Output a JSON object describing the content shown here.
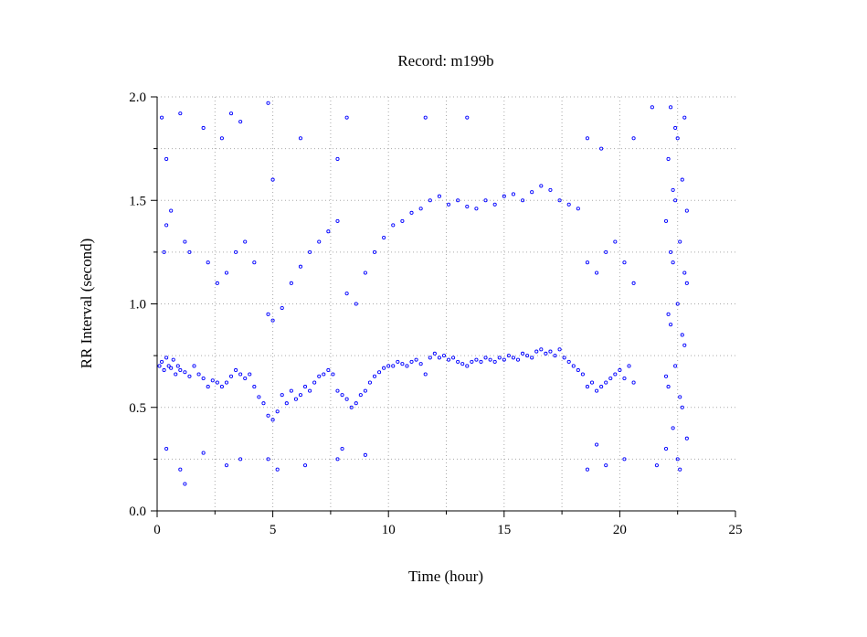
{
  "chart_data": {
    "type": "scatter",
    "title": "Record:  m199b",
    "xlabel": "Time (hour)",
    "ylabel": "RR Interval (second)",
    "xlim": [
      0,
      25
    ],
    "ylim": [
      0.0,
      2.0
    ],
    "xticks": [
      0,
      5,
      10,
      15,
      20,
      25
    ],
    "xtick_labels": [
      "0",
      "5",
      "10",
      "15",
      "20",
      "25"
    ],
    "yticks": [
      0.0,
      0.5,
      1.0,
      1.5,
      2.0
    ],
    "ytick_labels": [
      "0.0",
      "0.5",
      "1.0",
      "1.5",
      "2.0"
    ],
    "grid": true,
    "marker": "open-circle",
    "color": "#0000ff",
    "series": [
      {
        "name": "",
        "points": [
          [
            0.1,
            0.7
          ],
          [
            0.2,
            0.72
          ],
          [
            0.3,
            0.68
          ],
          [
            0.4,
            0.74
          ],
          [
            0.5,
            0.7
          ],
          [
            0.6,
            0.69
          ],
          [
            0.7,
            0.73
          ],
          [
            0.8,
            0.66
          ],
          [
            0.9,
            0.7
          ],
          [
            1.0,
            0.68
          ],
          [
            1.2,
            0.67
          ],
          [
            1.4,
            0.65
          ],
          [
            1.6,
            0.7
          ],
          [
            1.8,
            0.66
          ],
          [
            2.0,
            0.64
          ],
          [
            2.2,
            0.6
          ],
          [
            2.4,
            0.63
          ],
          [
            2.6,
            0.62
          ],
          [
            2.8,
            0.6
          ],
          [
            3.0,
            0.62
          ],
          [
            3.2,
            0.65
          ],
          [
            3.4,
            0.68
          ],
          [
            3.6,
            0.66
          ],
          [
            3.8,
            0.64
          ],
          [
            4.0,
            0.66
          ],
          [
            4.2,
            0.6
          ],
          [
            4.4,
            0.55
          ],
          [
            4.6,
            0.52
          ],
          [
            4.8,
            0.46
          ],
          [
            5.0,
            0.44
          ],
          [
            5.2,
            0.48
          ],
          [
            5.4,
            0.56
          ],
          [
            5.6,
            0.52
          ],
          [
            5.8,
            0.58
          ],
          [
            6.0,
            0.54
          ],
          [
            6.2,
            0.56
          ],
          [
            6.4,
            0.6
          ],
          [
            6.6,
            0.58
          ],
          [
            6.8,
            0.62
          ],
          [
            7.0,
            0.65
          ],
          [
            7.2,
            0.66
          ],
          [
            7.4,
            0.68
          ],
          [
            7.6,
            0.66
          ],
          [
            7.8,
            0.58
          ],
          [
            8.0,
            0.56
          ],
          [
            8.2,
            0.54
          ],
          [
            8.4,
            0.5
          ],
          [
            8.6,
            0.52
          ],
          [
            8.8,
            0.56
          ],
          [
            9.0,
            0.58
          ],
          [
            9.2,
            0.62
          ],
          [
            9.4,
            0.65
          ],
          [
            9.6,
            0.67
          ],
          [
            9.8,
            0.69
          ],
          [
            10.0,
            0.7
          ],
          [
            10.2,
            0.7
          ],
          [
            10.4,
            0.72
          ],
          [
            10.6,
            0.71
          ],
          [
            10.8,
            0.7
          ],
          [
            11.0,
            0.72
          ],
          [
            11.2,
            0.73
          ],
          [
            11.4,
            0.71
          ],
          [
            11.6,
            0.66
          ],
          [
            11.8,
            0.74
          ],
          [
            12.0,
            0.76
          ],
          [
            12.2,
            0.74
          ],
          [
            12.4,
            0.75
          ],
          [
            12.6,
            0.73
          ],
          [
            12.8,
            0.74
          ],
          [
            13.0,
            0.72
          ],
          [
            13.2,
            0.71
          ],
          [
            13.4,
            0.7
          ],
          [
            13.6,
            0.72
          ],
          [
            13.8,
            0.73
          ],
          [
            14.0,
            0.72
          ],
          [
            14.2,
            0.74
          ],
          [
            14.4,
            0.73
          ],
          [
            14.6,
            0.72
          ],
          [
            14.8,
            0.74
          ],
          [
            15.0,
            0.73
          ],
          [
            15.2,
            0.75
          ],
          [
            15.4,
            0.74
          ],
          [
            15.6,
            0.73
          ],
          [
            15.8,
            0.76
          ],
          [
            16.0,
            0.75
          ],
          [
            16.2,
            0.74
          ],
          [
            16.4,
            0.77
          ],
          [
            16.6,
            0.78
          ],
          [
            16.8,
            0.76
          ],
          [
            17.0,
            0.77
          ],
          [
            17.2,
            0.75
          ],
          [
            17.4,
            0.78
          ],
          [
            17.6,
            0.74
          ],
          [
            17.8,
            0.72
          ],
          [
            18.0,
            0.7
          ],
          [
            18.2,
            0.68
          ],
          [
            18.4,
            0.66
          ],
          [
            18.6,
            0.6
          ],
          [
            18.8,
            0.62
          ],
          [
            19.0,
            0.58
          ],
          [
            19.2,
            0.6
          ],
          [
            19.4,
            0.62
          ],
          [
            19.6,
            0.64
          ],
          [
            19.8,
            0.66
          ],
          [
            20.0,
            0.68
          ],
          [
            20.2,
            0.64
          ],
          [
            20.4,
            0.7
          ],
          [
            20.6,
            0.62
          ],
          [
            0.3,
            1.25
          ],
          [
            0.4,
            1.38
          ],
          [
            0.6,
            1.45
          ],
          [
            1.2,
            1.3
          ],
          [
            1.4,
            1.25
          ],
          [
            2.2,
            1.2
          ],
          [
            2.6,
            1.1
          ],
          [
            3.0,
            1.15
          ],
          [
            3.4,
            1.25
          ],
          [
            3.8,
            1.3
          ],
          [
            4.2,
            1.2
          ],
          [
            4.8,
            0.95
          ],
          [
            5.0,
            0.92
          ],
          [
            5.4,
            0.98
          ],
          [
            5.8,
            1.1
          ],
          [
            6.2,
            1.18
          ],
          [
            6.6,
            1.25
          ],
          [
            7.0,
            1.3
          ],
          [
            7.4,
            1.35
          ],
          [
            7.8,
            1.4
          ],
          [
            8.2,
            1.05
          ],
          [
            8.6,
            1.0
          ],
          [
            9.0,
            1.15
          ],
          [
            9.4,
            1.25
          ],
          [
            9.8,
            1.32
          ],
          [
            10.2,
            1.38
          ],
          [
            10.6,
            1.4
          ],
          [
            11.0,
            1.44
          ],
          [
            11.4,
            1.46
          ],
          [
            11.8,
            1.5
          ],
          [
            12.2,
            1.52
          ],
          [
            12.6,
            1.48
          ],
          [
            13.0,
            1.5
          ],
          [
            13.4,
            1.47
          ],
          [
            13.8,
            1.46
          ],
          [
            14.2,
            1.5
          ],
          [
            14.6,
            1.48
          ],
          [
            15.0,
            1.52
          ],
          [
            15.4,
            1.53
          ],
          [
            15.8,
            1.5
          ],
          [
            16.2,
            1.54
          ],
          [
            16.6,
            1.57
          ],
          [
            17.0,
            1.55
          ],
          [
            17.4,
            1.5
          ],
          [
            17.8,
            1.48
          ],
          [
            18.2,
            1.46
          ],
          [
            18.6,
            1.2
          ],
          [
            19.0,
            1.15
          ],
          [
            19.4,
            1.25
          ],
          [
            19.8,
            1.3
          ],
          [
            20.2,
            1.2
          ],
          [
            20.6,
            1.1
          ],
          [
            0.2,
            1.9
          ],
          [
            0.4,
            1.7
          ],
          [
            1.0,
            1.92
          ],
          [
            2.0,
            1.85
          ],
          [
            2.8,
            1.8
          ],
          [
            3.2,
            1.92
          ],
          [
            3.6,
            1.88
          ],
          [
            4.8,
            1.97
          ],
          [
            5.0,
            1.6
          ],
          [
            6.2,
            1.8
          ],
          [
            7.8,
            1.7
          ],
          [
            8.2,
            1.9
          ],
          [
            11.6,
            1.9
          ],
          [
            13.4,
            1.9
          ],
          [
            18.6,
            1.8
          ],
          [
            19.2,
            1.75
          ],
          [
            20.6,
            1.8
          ],
          [
            21.4,
            1.95
          ],
          [
            0.4,
            0.3
          ],
          [
            1.0,
            0.2
          ],
          [
            1.2,
            0.13
          ],
          [
            2.0,
            0.28
          ],
          [
            3.0,
            0.22
          ],
          [
            3.6,
            0.25
          ],
          [
            4.8,
            0.25
          ],
          [
            5.2,
            0.2
          ],
          [
            6.4,
            0.22
          ],
          [
            7.8,
            0.25
          ],
          [
            8.0,
            0.3
          ],
          [
            9.0,
            0.27
          ],
          [
            18.6,
            0.2
          ],
          [
            19.0,
            0.32
          ],
          [
            19.4,
            0.22
          ],
          [
            20.2,
            0.25
          ],
          [
            21.6,
            0.22
          ],
          [
            22.0,
            0.3
          ],
          [
            22.1,
            0.6
          ],
          [
            22.2,
            0.9
          ],
          [
            22.3,
            1.2
          ],
          [
            22.4,
            1.5
          ],
          [
            22.5,
            1.8
          ],
          [
            22.6,
            0.2
          ],
          [
            22.7,
            0.5
          ],
          [
            22.8,
            0.8
          ],
          [
            22.9,
            1.1
          ],
          [
            22.0,
            1.4
          ],
          [
            22.1,
            1.7
          ],
          [
            22.2,
            1.95
          ],
          [
            22.3,
            0.4
          ],
          [
            22.4,
            0.7
          ],
          [
            22.5,
            1.0
          ],
          [
            22.6,
            1.3
          ],
          [
            22.7,
            1.6
          ],
          [
            22.8,
            1.9
          ],
          [
            22.9,
            0.35
          ],
          [
            22.0,
            0.65
          ],
          [
            22.1,
            0.95
          ],
          [
            22.2,
            1.25
          ],
          [
            22.3,
            1.55
          ],
          [
            22.4,
            1.85
          ],
          [
            22.5,
            0.25
          ],
          [
            22.6,
            0.55
          ],
          [
            22.7,
            0.85
          ],
          [
            22.8,
            1.15
          ],
          [
            22.9,
            1.45
          ]
        ]
      }
    ]
  }
}
